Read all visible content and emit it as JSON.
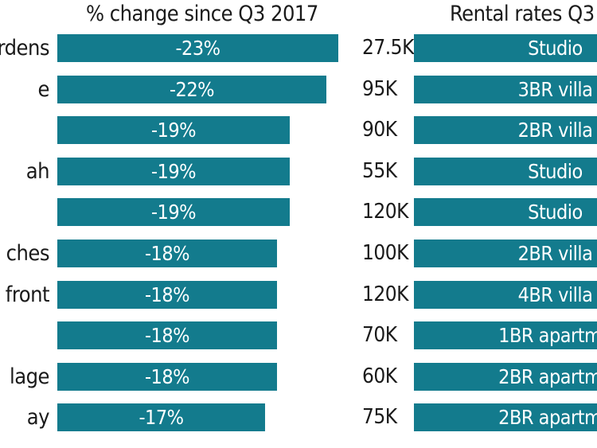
{
  "chart_data": [
    {
      "type": "bar",
      "orientation": "horizontal",
      "title": "% change since Q3 2017",
      "categories": [
        "rdens",
        "e",
        "",
        "ah",
        "",
        "ches",
        "front",
        "",
        "lage",
        "ay"
      ],
      "values": [
        -23,
        -22,
        -19,
        -19,
        -19,
        -18,
        -18,
        -18,
        -18,
        -17
      ],
      "value_labels": [
        "-23%",
        "-22%",
        "-19%",
        "-19%",
        "-19%",
        "-18%",
        "-18%",
        "-18%",
        "-18%",
        "-17%"
      ]
    },
    {
      "type": "table",
      "title": "Rental rates Q3",
      "rents": [
        "27.5K",
        "95K",
        "90K",
        "55K",
        "120K",
        "100K",
        "120K",
        "70K",
        "60K",
        "75K"
      ],
      "units": [
        "Studio",
        "3BR villa",
        "2BR villa",
        "Studio",
        "Studio",
        "2BR villa",
        "4BR villa",
        "1BR apartme",
        "2BR apartme",
        "2BR apartme"
      ]
    }
  ],
  "colors": {
    "bar": "#137b8d",
    "bar_text": "#ffffff",
    "text": "#1a1a1a"
  }
}
